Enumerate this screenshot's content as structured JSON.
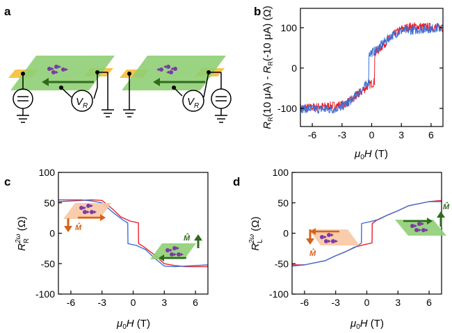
{
  "panel_labels": [
    "a",
    "b",
    "c",
    "d"
  ],
  "schematic": {
    "voltmeter_label": "V",
    "voltmeter_subscript": "R"
  },
  "chart_data": [
    {
      "panel": "b",
      "type": "line",
      "xlabel": "μ0H (T)",
      "ylabel": "RR(10 μA) - RR(-10 μA) (Ω)",
      "xlim": [
        -7.2,
        7.2
      ],
      "ylim": [
        -145,
        148
      ],
      "xticks": [
        -6,
        -3,
        0,
        3,
        6
      ],
      "yticks": [
        -100,
        0,
        100
      ],
      "grid": false,
      "noise": 11,
      "series": [
        {
          "color": "#e8212a",
          "sweep": "up",
          "x": [
            -7.2,
            -3,
            -2,
            -1,
            -0.3,
            0.28,
            0.3,
            0.8,
            2,
            3,
            4,
            7.2
          ],
          "y": [
            -100,
            -92,
            -80,
            -58,
            -42,
            -35,
            35,
            48,
            78,
            96,
            103,
            100
          ]
        },
        {
          "color": "#3b6fd4",
          "sweep": "down",
          "x": [
            -7.2,
            -4,
            -3,
            -2,
            -0.8,
            -0.3,
            -0.28,
            0.3,
            1,
            2,
            3,
            7.2
          ],
          "y": [
            -100,
            -103,
            -96,
            -78,
            -48,
            -35,
            35,
            42,
            58,
            80,
            92,
            100
          ]
        }
      ]
    },
    {
      "panel": "c",
      "type": "line",
      "xlabel": "μ0H (T)",
      "ylabel": "R_R^2ω (Ω)",
      "xlim": [
        -7.2,
        7.2
      ],
      "ylim": [
        -100,
        100
      ],
      "xticks": [
        -6,
        -3,
        0,
        3,
        6
      ],
      "yticks": [
        -100,
        -50,
        0,
        50,
        100
      ],
      "grid": false,
      "series": [
        {
          "color": "#e8212a",
          "sweep": "up",
          "x": [
            -7.2,
            -6,
            -4,
            -3,
            -2,
            -1.2,
            -0.3,
            0.5,
            0.52,
            1,
            2,
            3,
            4,
            5,
            6,
            7.2
          ],
          "y": [
            52,
            53,
            55,
            54,
            40,
            27,
            20,
            17,
            -17,
            -22,
            -35,
            -50,
            -53,
            -55,
            -55,
            -55
          ]
        },
        {
          "color": "#3b6fd4",
          "sweep": "down",
          "x": [
            -7.2,
            -6,
            -5,
            -4,
            -3,
            -2,
            -1,
            -0.52,
            -0.5,
            0.3,
            1.2,
            2,
            3,
            4,
            6,
            7.2
          ],
          "y": [
            55,
            55,
            55,
            53,
            50,
            35,
            22,
            17,
            -17,
            -20,
            -27,
            -40,
            -54,
            -55,
            -53,
            -52
          ]
        }
      ]
    },
    {
      "panel": "d",
      "type": "line",
      "xlabel": "μ0H (T)",
      "ylabel": "R_L^2ω (Ω)",
      "xlim": [
        -7.2,
        7.2
      ],
      "ylim": [
        -100,
        100
      ],
      "xticks": [
        -6,
        -3,
        0,
        3,
        6
      ],
      "yticks": [
        -100,
        -50,
        0,
        50,
        100
      ],
      "grid": false,
      "series": [
        {
          "color": "#e8212a",
          "sweep": "up",
          "x": [
            -7.2,
            -6,
            -4,
            -3,
            -2,
            -1.2,
            -0.3,
            0.5,
            0.52,
            1,
            2,
            3,
            4,
            6,
            7.2
          ],
          "y": [
            -52,
            -52,
            -45,
            -37,
            -30,
            -23,
            -19,
            -16,
            16,
            22,
            30,
            37,
            45,
            52,
            54
          ]
        },
        {
          "color": "#3b6fd4",
          "sweep": "down",
          "x": [
            -7.2,
            -6,
            -4,
            -3,
            -2,
            -1,
            -0.52,
            -0.5,
            0.3,
            1.2,
            2,
            3,
            4,
            6,
            7.2
          ],
          "y": [
            -54,
            -52,
            -45,
            -37,
            -30,
            -22,
            -16,
            16,
            19,
            23,
            30,
            37,
            45,
            52,
            52
          ]
        }
      ]
    }
  ]
}
